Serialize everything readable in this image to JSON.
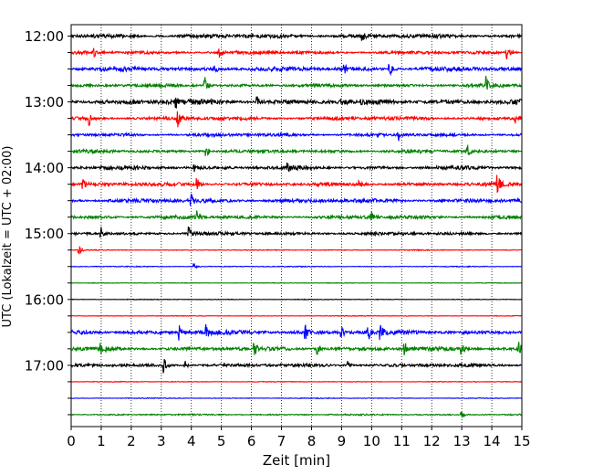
{
  "chart_data": {
    "type": "line",
    "title": "",
    "xlabel": "Zeit  [min]",
    "ylabel": "UTC (Lokalzeit = UTC + 02:00)",
    "xlim": [
      0,
      15
    ],
    "x_ticks": [
      "0",
      "1",
      "2",
      "3",
      "4",
      "5",
      "6",
      "7",
      "8",
      "9",
      "10",
      "11",
      "12",
      "13",
      "14",
      "15"
    ],
    "y_tick_labels": [
      "12:00",
      "13:00",
      "14:00",
      "15:00",
      "16:00",
      "17:00"
    ],
    "grid": "vertical dotted lines at every minute",
    "trace_colors": [
      "#000000",
      "#ff0000",
      "#0000ff",
      "#008000"
    ],
    "traces": [
      {
        "start": "12:00",
        "color": "#000000",
        "noise": 0.55,
        "events": [
          [
            9.7,
            0.6
          ]
        ]
      },
      {
        "start": "12:15",
        "color": "#ff0000",
        "noise": 0.45,
        "events": [
          [
            0.75,
            0.9
          ],
          [
            4.95,
            0.7
          ],
          [
            14.5,
            1.4
          ]
        ]
      },
      {
        "start": "12:30",
        "color": "#0000ff",
        "noise": 0.6,
        "events": [
          [
            4.8,
            0.6
          ],
          [
            9.1,
            0.6
          ],
          [
            10.6,
            1.2
          ]
        ]
      },
      {
        "start": "12:45",
        "color": "#008000",
        "noise": 0.45,
        "events": [
          [
            4.45,
            1.2
          ],
          [
            13.8,
            1.3
          ]
        ]
      },
      {
        "start": "13:00",
        "color": "#000000",
        "noise": 0.75,
        "events": [
          [
            3.5,
            0.7
          ],
          [
            6.2,
            0.7
          ]
        ]
      },
      {
        "start": "13:15",
        "color": "#ff0000",
        "noise": 0.5,
        "events": [
          [
            0.6,
            0.9
          ],
          [
            3.55,
            1.4
          ],
          [
            14.8,
            0.7
          ]
        ]
      },
      {
        "start": "13:30",
        "color": "#0000ff",
        "noise": 0.45,
        "events": [
          [
            10.9,
            0.9
          ]
        ]
      },
      {
        "start": "13:45",
        "color": "#008000",
        "noise": 0.45,
        "events": [
          [
            4.5,
            1.3
          ],
          [
            13.2,
            0.9
          ]
        ]
      },
      {
        "start": "14:00",
        "color": "#000000",
        "noise": 0.5,
        "events": [
          [
            4.1,
            0.6
          ],
          [
            7.2,
            0.6
          ]
        ]
      },
      {
        "start": "14:15",
        "color": "#ff0000",
        "noise": 0.5,
        "events": [
          [
            0.4,
            0.9
          ],
          [
            4.2,
            0.8
          ],
          [
            9.6,
            0.7
          ],
          [
            14.2,
            1.3
          ]
        ]
      },
      {
        "start": "14:30",
        "color": "#0000ff",
        "noise": 0.55,
        "events": [
          [
            4.0,
            0.9
          ]
        ]
      },
      {
        "start": "14:45",
        "color": "#008000",
        "noise": 0.5,
        "events": [
          [
            4.2,
            1.1
          ],
          [
            10.0,
            0.7
          ]
        ]
      },
      {
        "start": "15:00",
        "color": "#000000",
        "noise": 0.45,
        "events": [
          [
            1.0,
            0.9
          ],
          [
            3.9,
            1.5
          ]
        ]
      },
      {
        "start": "15:15",
        "color": "#ff0000",
        "noise": 0.12,
        "events": [
          [
            0.25,
            0.9
          ]
        ]
      },
      {
        "start": "15:30",
        "color": "#0000ff",
        "noise": 0.12,
        "events": [
          [
            4.1,
            0.6
          ]
        ]
      },
      {
        "start": "15:45",
        "color": "#008000",
        "noise": 0.08,
        "events": []
      },
      {
        "start": "16:00",
        "color": "#000000",
        "noise": 0.1,
        "events": []
      },
      {
        "start": "16:15",
        "color": "#ff0000",
        "noise": 0.08,
        "events": []
      },
      {
        "start": "16:30",
        "color": "#0000ff",
        "noise": 0.6,
        "events": [
          [
            3.6,
            1.1
          ],
          [
            4.5,
            1.0
          ],
          [
            7.8,
            1.1
          ],
          [
            9.0,
            0.9
          ],
          [
            9.9,
            1.2
          ],
          [
            10.3,
            1.0
          ]
        ]
      },
      {
        "start": "16:45",
        "color": "#008000",
        "noise": 0.55,
        "events": [
          [
            1.0,
            1.0
          ],
          [
            6.1,
            1.0
          ],
          [
            8.2,
            0.9
          ],
          [
            11.1,
            1.1
          ],
          [
            13.0,
            1.0
          ],
          [
            14.9,
            0.9
          ]
        ]
      },
      {
        "start": "17:00",
        "color": "#000000",
        "noise": 0.45,
        "events": [
          [
            3.1,
            1.1
          ],
          [
            3.8,
            0.8
          ],
          [
            9.2,
            0.7
          ]
        ]
      },
      {
        "start": "17:15",
        "color": "#ff0000",
        "noise": 0.1,
        "events": []
      },
      {
        "start": "17:30",
        "color": "#0000ff",
        "noise": 0.1,
        "events": []
      },
      {
        "start": "17:45",
        "color": "#008000",
        "noise": 0.2,
        "events": [
          [
            13.0,
            0.5
          ]
        ]
      }
    ]
  }
}
